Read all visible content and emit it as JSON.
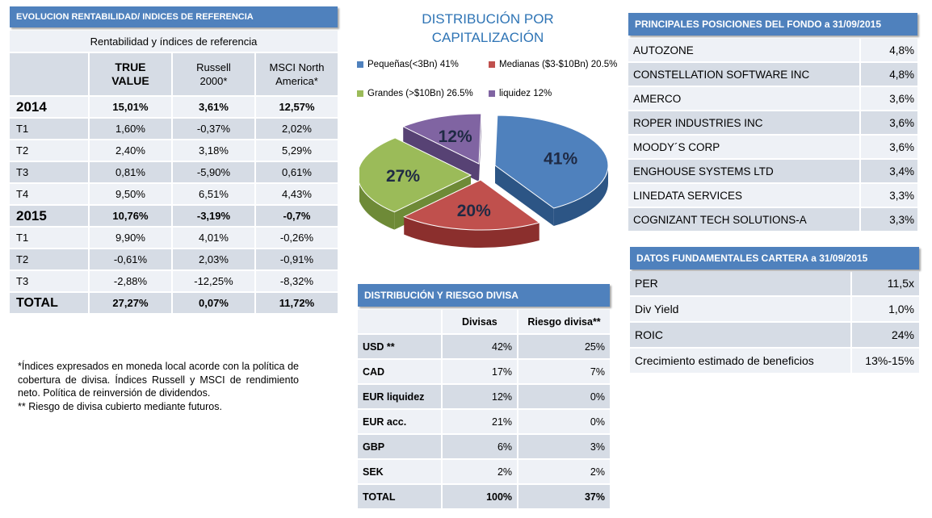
{
  "rent": {
    "header": "EVOLUCION RENTABILIDAD/ INDICES DE REFERENCIA",
    "subheader": "Rentabilidad  y índices de referencia",
    "columns": [
      "TRUE VALUE",
      "Russell 2000*",
      "MSCI North America*"
    ],
    "rows": [
      {
        "label": "2014",
        "kind": "year",
        "values": [
          "15,01%",
          "3,61%",
          "12,57%"
        ]
      },
      {
        "label": "T1",
        "kind": "q",
        "values": [
          "1,60%",
          "-0,37%",
          "2,02%"
        ]
      },
      {
        "label": "T2",
        "kind": "q",
        "values": [
          "2,40%",
          "3,18%",
          "5,29%"
        ]
      },
      {
        "label": "T3",
        "kind": "q",
        "values": [
          "0,81%",
          "-5,90%",
          "0,61%"
        ]
      },
      {
        "label": "T4",
        "kind": "q",
        "values": [
          "9,50%",
          "6,51%",
          "4,43%"
        ]
      },
      {
        "label": "2015",
        "kind": "year",
        "values": [
          "10,76%",
          "-3,19%",
          "-0,7%"
        ]
      },
      {
        "label": "T1",
        "kind": "q",
        "values": [
          "9,90%",
          "4,01%",
          "-0,26%"
        ]
      },
      {
        "label": "T2",
        "kind": "q",
        "values": [
          "-0,61%",
          "2,03%",
          "-0,91%"
        ]
      },
      {
        "label": "T3",
        "kind": "q",
        "values": [
          "-2,88%",
          "-12,25%",
          "-8,32%"
        ]
      },
      {
        "label": "TOTAL",
        "kind": "total",
        "values": [
          "27,27%",
          "0,07%",
          "11,72%"
        ]
      }
    ]
  },
  "footnote": {
    "line1": "*Índices expresados en moneda local acorde con la política de cobertura de divisa. Índices Russell y MSCI de rendimiento neto. Política de reinversión de dividendos.",
    "line2": "** Riesgo de divisa cubierto mediante futuros."
  },
  "pie": {
    "title_line1": "DISTRIBUCIÓN POR",
    "title_line2": "CAPITALIZACIÓN",
    "legend": [
      {
        "label": "Pequeñas(<3Bn)  41%",
        "color": "#4f81bd"
      },
      {
        "label": "Medianas ($3-$10Bn) 20.5%",
        "color": "#c0504d"
      },
      {
        "label": "Grandes (>$10Bn)  26.5%",
        "color": "#9bbb59"
      },
      {
        "label": "liquidez  12%",
        "color": "#8064a2"
      }
    ],
    "slices": [
      {
        "label": "41%",
        "value": 41,
        "color": "#4f81bd",
        "side": "#2c5585"
      },
      {
        "label": "20%",
        "value": 20.5,
        "color": "#c0504d",
        "side": "#8b2f2d"
      },
      {
        "label": "27%",
        "value": 26.5,
        "color": "#9bbb59",
        "side": "#6e8a37"
      },
      {
        "label": "12%",
        "value": 12,
        "color": "#8064a2",
        "side": "#574274"
      }
    ]
  },
  "divisa": {
    "header": "DISTRIBUCIÓN  Y RIESGO DIVISA",
    "col1": "Divisas",
    "col2": "Riesgo divisa**",
    "rows": [
      {
        "label": "USD **",
        "a": "42%",
        "b": "25%"
      },
      {
        "label": "CAD",
        "a": "17%",
        "b": "7%"
      },
      {
        "label": "EUR liquidez",
        "a": "12%",
        "b": "0%"
      },
      {
        "label": "EUR acc.",
        "a": "21%",
        "b": "0%"
      },
      {
        "label": "GBP",
        "a": "6%",
        "b": "3%"
      },
      {
        "label": "SEK",
        "a": "2%",
        "b": "2%"
      },
      {
        "label": "TOTAL",
        "a": "100%",
        "b": "37%"
      }
    ]
  },
  "posiciones": {
    "header": "PRINCIPALES POSICIONES DEL FONDO a 31/09/2015",
    "rows": [
      {
        "name": "AUTOZONE",
        "value": "4,8%"
      },
      {
        "name": "CONSTELLATION SOFTWARE INC",
        "value": "4,8%"
      },
      {
        "name": "AMERCO",
        "value": "3,6%"
      },
      {
        "name": "ROPER INDUSTRIES INC",
        "value": "3,6%"
      },
      {
        "name": "MOODY´S CORP",
        "value": "3,6%"
      },
      {
        "name": "ENGHOUSE SYSTEMS LTD",
        "value": "3,4%"
      },
      {
        "name": "LINEDATA SERVICES",
        "value": "3,3%"
      },
      {
        "name": "COGNIZANT TECH SOLUTIONS-A",
        "value": "3,3%"
      }
    ]
  },
  "fundamentales": {
    "header": "DATOS FUNDAMENTALES CARTERA a 31/09/2015",
    "rows": [
      {
        "name": "PER",
        "value": "11,5x"
      },
      {
        "name": "Div Yield",
        "value": "1,0%"
      },
      {
        "name": "ROIC",
        "value": "24%"
      },
      {
        "name": "Crecimiento estimado de  beneficios",
        "value": "13%-15%"
      }
    ]
  }
}
